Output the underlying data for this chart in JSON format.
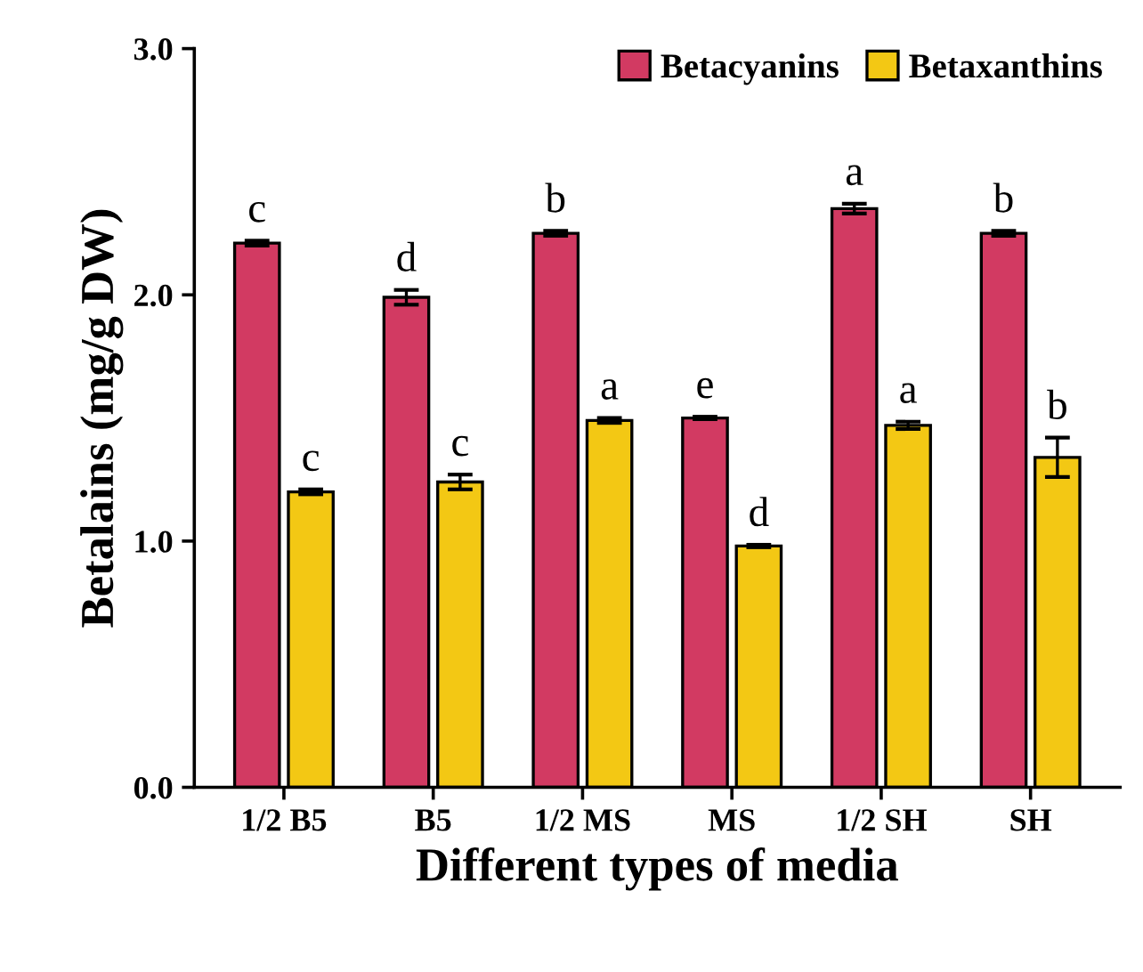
{
  "chart_data": {
    "type": "bar",
    "xlabel": "Different types of media",
    "ylabel": "Betalains (mg/g DW)",
    "categories": [
      "1/2 B5",
      "B5",
      "1/2 MS",
      "MS",
      "1/2 SH",
      "SH"
    ],
    "series": [
      {
        "name": "Betacyanins",
        "color": "#d23a62",
        "values": [
          2.21,
          1.99,
          2.25,
          1.5,
          2.35,
          2.25
        ],
        "errors": [
          0.01,
          0.03,
          0.01,
          0.005,
          0.02,
          0.01
        ],
        "value_labels": [
          "c",
          "d",
          "b",
          "e",
          "a",
          "b"
        ]
      },
      {
        "name": "Betaxanthins",
        "color": "#f3c814",
        "values": [
          1.2,
          1.24,
          1.49,
          0.98,
          1.47,
          1.34
        ],
        "errors": [
          0.01,
          0.03,
          0.01,
          0.005,
          0.015,
          0.08
        ],
        "value_labels": [
          "c",
          "c",
          "a",
          "d",
          "a",
          "b"
        ]
      }
    ],
    "ylim": [
      0,
      3
    ],
    "yticks": [
      {
        "value": 0,
        "label": "0.0"
      },
      {
        "value": 1,
        "label": "1.0"
      },
      {
        "value": 2,
        "label": "2.0"
      },
      {
        "value": 3,
        "label": "3.0"
      }
    ],
    "grid": false,
    "legend": "top right"
  }
}
